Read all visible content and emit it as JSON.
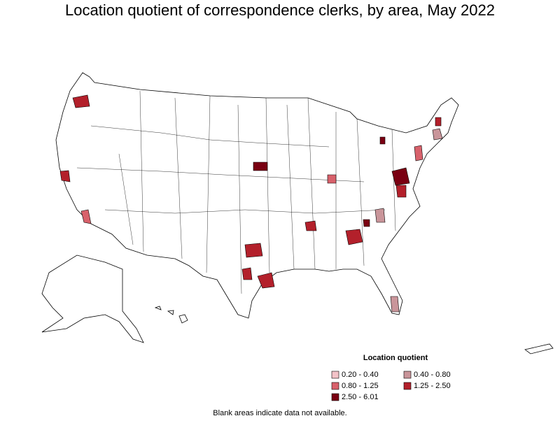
{
  "title": "Location quotient of correspondence clerks, by area, May 2022",
  "legend": {
    "title": "Location quotient",
    "entries": [
      {
        "label": "0.20 - 0.40",
        "color": "#f3c3c8"
      },
      {
        "label": "0.40 - 0.80",
        "color": "#c9959a"
      },
      {
        "label": "0.80 - 1.25",
        "color": "#d8616b"
      },
      {
        "label": "1.25 - 2.50",
        "color": "#b3202b"
      },
      {
        "label": "2.50 - 6.01",
        "color": "#7a0012"
      }
    ]
  },
  "footnote": "Blank areas indicate data not available."
}
